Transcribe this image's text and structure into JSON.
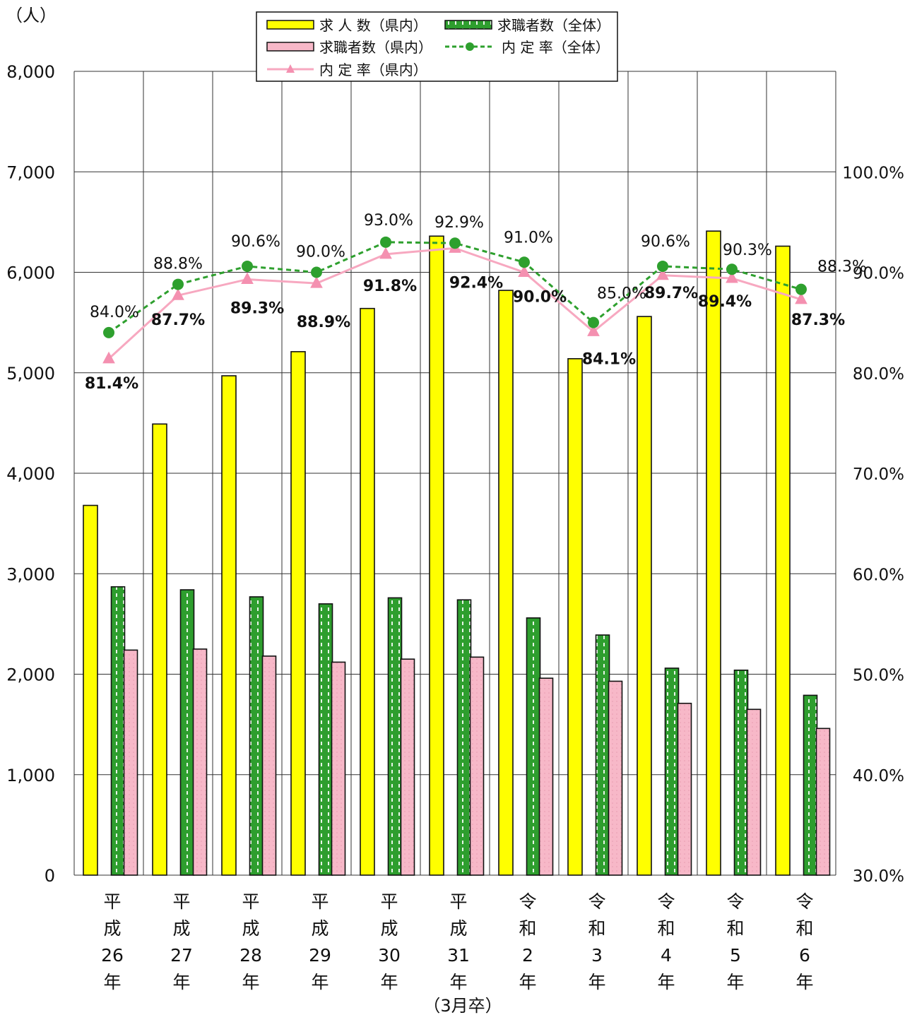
{
  "chart_data": {
    "type": "bar",
    "y_unit_label": "（人）",
    "x_note": "（3月卒）",
    "categories": [
      [
        "平",
        "成",
        "26",
        "年"
      ],
      [
        "平",
        "成",
        "27",
        "年"
      ],
      [
        "平",
        "成",
        "28",
        "年"
      ],
      [
        "平",
        "成",
        "29",
        "年"
      ],
      [
        "平",
        "成",
        "30",
        "年"
      ],
      [
        "平",
        "成",
        "31",
        "年"
      ],
      [
        "令",
        "和",
        "2",
        "年"
      ],
      [
        "令",
        "和",
        "3",
        "年"
      ],
      [
        "令",
        "和",
        "4",
        "年"
      ],
      [
        "令",
        "和",
        "5",
        "年"
      ],
      [
        "令",
        "和",
        "6",
        "年"
      ]
    ],
    "ylim_left": [
      0,
      8000
    ],
    "left_ticks": [
      "0",
      "1,000",
      "2,000",
      "3,000",
      "4,000",
      "5,000",
      "6,000",
      "7,000",
      "8,000"
    ],
    "ylim_right": [
      30,
      110
    ],
    "right_ticks": [
      "30.0%",
      "40.0%",
      "50.0%",
      "60.0%",
      "70.0%",
      "80.0%",
      "90.0%",
      "100.0%"
    ],
    "grid": true,
    "legend_position": "top-center",
    "bar_series": [
      {
        "name": "求 人 数（県内）",
        "color": "#ffff00",
        "values": [
          3680,
          4490,
          4970,
          5210,
          5640,
          6360,
          5820,
          5140,
          5560,
          6410,
          6260
        ]
      },
      {
        "name": "求職者数（全体）",
        "color": "#2e9e2e",
        "values": [
          2870,
          2840,
          2770,
          2700,
          2760,
          2740,
          2560,
          2390,
          2060,
          2040,
          1790
        ]
      },
      {
        "name": "求職者数（県内）",
        "color": "#f7b8c8",
        "values": [
          2240,
          2250,
          2180,
          2120,
          2150,
          2170,
          1960,
          1930,
          1710,
          1650,
          1460
        ]
      }
    ],
    "line_series": [
      {
        "name": "内 定 率（全体）",
        "color": "#2ea02e",
        "style": "dashed",
        "marker": "circle",
        "values": [
          84.0,
          88.8,
          90.6,
          90.0,
          93.0,
          92.9,
          91.0,
          85.0,
          90.6,
          90.3,
          88.3
        ],
        "labels": [
          "84.0%",
          "88.8%",
          "90.6%",
          "90.0%",
          "93.0%",
          "92.9%",
          "91.0%",
          "85.0%",
          "90.6%",
          "90.3%",
          "88.3%"
        ]
      },
      {
        "name": "内 定 率（県内）",
        "color": "#f7a8c0",
        "style": "solid",
        "marker": "triangle",
        "values": [
          81.4,
          87.7,
          89.3,
          88.9,
          91.8,
          92.4,
          90.0,
          84.1,
          89.7,
          89.4,
          87.3
        ],
        "labels": [
          "81.4%",
          "87.7%",
          "89.3%",
          "88.9%",
          "91.8%",
          "92.4%",
          "90.0%",
          "84.1%",
          "89.7%",
          "89.4%",
          "87.3%"
        ]
      }
    ]
  }
}
